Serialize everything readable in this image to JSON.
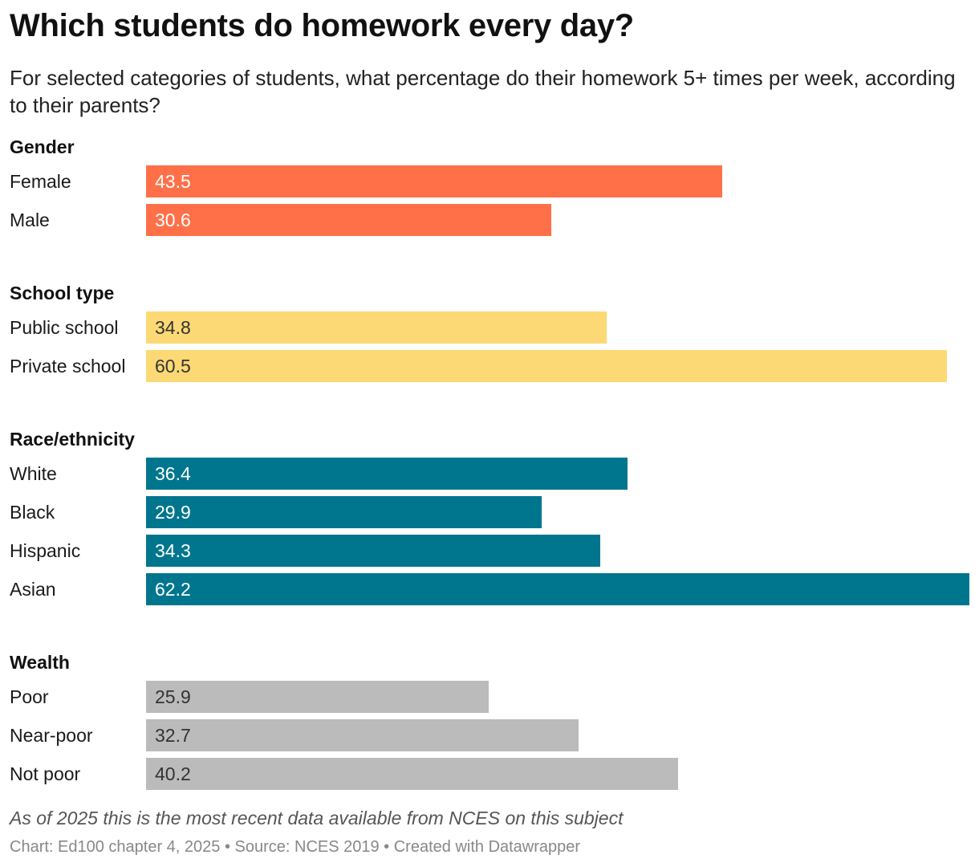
{
  "header": {
    "title": "Which students do homework every day?",
    "subtitle": "For selected categories of students, what percentage do their homework 5+ times per week, according to their parents?"
  },
  "chart_data": {
    "type": "bar",
    "orientation": "horizontal",
    "title": "Which students do homework every day?",
    "subtitle": "For selected categories of students, what percentage do their homework 5+ times per week, according to their parents?",
    "unit": "percent",
    "xlim": [
      0,
      62.2
    ],
    "groups": [
      {
        "name": "Gender",
        "color": "#ff7049",
        "label_color": "#ffffff",
        "rows": [
          {
            "label": "Female",
            "value": 43.5,
            "value_text": "43.5"
          },
          {
            "label": "Male",
            "value": 30.6,
            "value_text": "30.6"
          }
        ]
      },
      {
        "name": "School type",
        "color": "#fcd974",
        "label_color": "#333333",
        "rows": [
          {
            "label": "Public school",
            "value": 34.8,
            "value_text": "34.8"
          },
          {
            "label": "Private school",
            "value": 60.5,
            "value_text": "60.5"
          }
        ]
      },
      {
        "name": "Race/ethnicity",
        "color": "#00768e",
        "label_color": "#ffffff",
        "rows": [
          {
            "label": "White",
            "value": 36.4,
            "value_text": "36.4"
          },
          {
            "label": "Black",
            "value": 29.9,
            "value_text": "29.9"
          },
          {
            "label": "Hispanic",
            "value": 34.3,
            "value_text": "34.3"
          },
          {
            "label": "Asian",
            "value": 62.2,
            "value_text": "62.2"
          }
        ]
      },
      {
        "name": "Wealth",
        "color": "#bbbbbb",
        "label_color": "#333333",
        "rows": [
          {
            "label": "Poor",
            "value": 25.9,
            "value_text": "25.9"
          },
          {
            "label": "Near-poor",
            "value": 32.7,
            "value_text": "32.7"
          },
          {
            "label": "Not poor",
            "value": 40.2,
            "value_text": "40.2"
          }
        ]
      }
    ]
  },
  "footer": {
    "note": "As of 2025 this is the most recent data available from NCES on this subject",
    "credits": "Chart: Ed100 chapter 4, 2025 • Source: NCES 2019 • Created with Datawrapper"
  }
}
